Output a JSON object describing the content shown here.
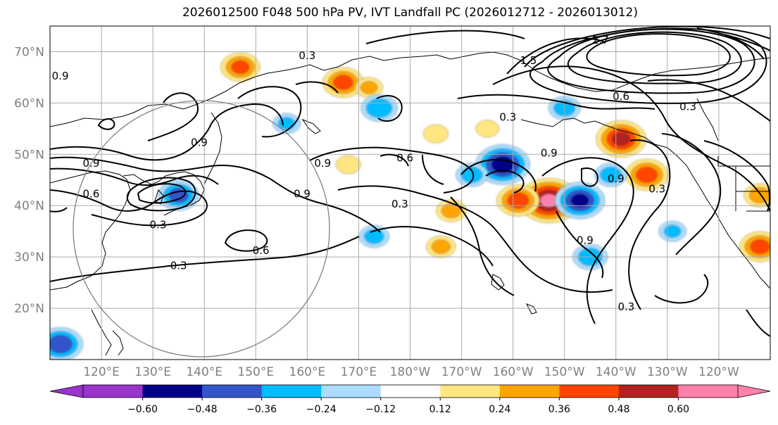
{
  "title": "2026012500 F048 500 hPa PV, IVT Landfall PC (2026012712 - 2026013012)",
  "lat_labels": [
    "70°N",
    "60°N",
    "50°N",
    "40°N",
    "30°N",
    "20°N"
  ],
  "lat_values": [
    70,
    60,
    50,
    40,
    30,
    20
  ],
  "lon_labels": [
    "120°E",
    "130°E",
    "140°E",
    "150°E",
    "160°E",
    "170°E",
    "180°W",
    "170°W",
    "160°W",
    "150°W",
    "140°W",
    "130°W",
    "120°W"
  ],
  "lon_values": [
    120,
    130,
    140,
    150,
    160,
    170,
    180,
    190,
    200,
    210,
    220,
    230,
    240
  ],
  "map_extent": {
    "lon_min": 110,
    "lon_max": 250,
    "lat_min": 10,
    "lat_max": 75
  },
  "colorbar": {
    "ticks": [
      "−0.60",
      "−0.48",
      "−0.36",
      "−0.24",
      "−0.12",
      "0.12",
      "0.24",
      "0.36",
      "0.48",
      "0.60"
    ],
    "levels": [
      -0.72,
      -0.6,
      -0.48,
      -0.36,
      -0.24,
      -0.12,
      0.12,
      0.24,
      0.36,
      0.48,
      0.6,
      0.72
    ],
    "colors": [
      "#9933cc",
      "#000088",
      "#3355cc",
      "#00bbff",
      "#aaddff",
      "#ffffff",
      "#ffe680",
      "#ffa500",
      "#ff4500",
      "#b22222",
      "#ff80aa"
    ],
    "under_color": "#9933cc",
    "over_color": "#ff80aa"
  },
  "contour_labels": [
    {
      "text": "0.9",
      "lon": 112,
      "lat": 65
    },
    {
      "text": "0.3",
      "lon": 160,
      "lat": 69
    },
    {
      "text": "0.9",
      "lon": 139,
      "lat": 52
    },
    {
      "text": "0.9",
      "lon": 118,
      "lat": 48
    },
    {
      "text": "0.6",
      "lon": 118,
      "lat": 42
    },
    {
      "text": "0.3",
      "lon": 131,
      "lat": 36
    },
    {
      "text": "0.6",
      "lon": 151,
      "lat": 31
    },
    {
      "text": "0.3",
      "lon": 135,
      "lat": 28
    },
    {
      "text": "0.9",
      "lon": 159,
      "lat": 42
    },
    {
      "text": "0.9",
      "lon": 163,
      "lat": 48
    },
    {
      "text": "0.3",
      "lon": 178,
      "lat": 40
    },
    {
      "text": "0.6",
      "lon": 179,
      "lat": 49
    },
    {
      "text": "0.3",
      "lon": 199,
      "lat": 57
    },
    {
      "text": "0.6",
      "lon": 221,
      "lat": 61
    },
    {
      "text": "2.7",
      "lon": 217,
      "lat": 72
    },
    {
      "text": "1.5",
      "lon": 203,
      "lat": 68
    },
    {
      "text": "0.9",
      "lon": 220,
      "lat": 45
    },
    {
      "text": "0.3",
      "lon": 228,
      "lat": 43
    },
    {
      "text": "0.3",
      "lon": 234,
      "lat": 59
    },
    {
      "text": "0.9",
      "lon": 207,
      "lat": 50
    },
    {
      "text": "0.9",
      "lon": 214,
      "lat": 33
    },
    {
      "text": "0.3",
      "lon": 222,
      "lat": 20
    }
  ],
  "pv_anomalies": [
    {
      "lon": 207,
      "lat": 41,
      "value": 0.62
    },
    {
      "lon": 201,
      "lat": 41,
      "value": 0.42
    },
    {
      "lon": 221,
      "lat": 53,
      "value": 0.5
    },
    {
      "lon": 226,
      "lat": 46,
      "value": 0.42
    },
    {
      "lon": 147,
      "lat": 67,
      "value": 0.38
    },
    {
      "lon": 167,
      "lat": 64,
      "value": 0.4
    },
    {
      "lon": 195,
      "lat": 55,
      "value": 0.2
    },
    {
      "lon": 185,
      "lat": 54,
      "value": 0.22
    },
    {
      "lon": 248,
      "lat": 32,
      "value": 0.4
    },
    {
      "lon": 248,
      "lat": 42,
      "value": 0.3
    },
    {
      "lon": 188,
      "lat": 39,
      "value": 0.28
    },
    {
      "lon": 186,
      "lat": 32,
      "value": 0.27
    },
    {
      "lon": 168,
      "lat": 48,
      "value": 0.22
    },
    {
      "lon": 172,
      "lat": 63,
      "value": 0.25
    },
    {
      "lon": 198,
      "lat": 48,
      "value": -0.55
    },
    {
      "lon": 192,
      "lat": 46,
      "value": -0.3
    },
    {
      "lon": 213,
      "lat": 41,
      "value": -0.5
    },
    {
      "lon": 219,
      "lat": 46,
      "value": -0.3
    },
    {
      "lon": 174,
      "lat": 59,
      "value": -0.35
    },
    {
      "lon": 210,
      "lat": 59,
      "value": -0.3
    },
    {
      "lon": 215,
      "lat": 30,
      "value": -0.33
    },
    {
      "lon": 173,
      "lat": 34,
      "value": -0.28
    },
    {
      "lon": 135,
      "lat": 42,
      "value": -0.4
    },
    {
      "lon": 112,
      "lat": 13,
      "value": -0.45
    },
    {
      "lon": 231,
      "lat": 35,
      "value": -0.25
    },
    {
      "lon": 156,
      "lat": 56,
      "value": -0.25
    }
  ]
}
